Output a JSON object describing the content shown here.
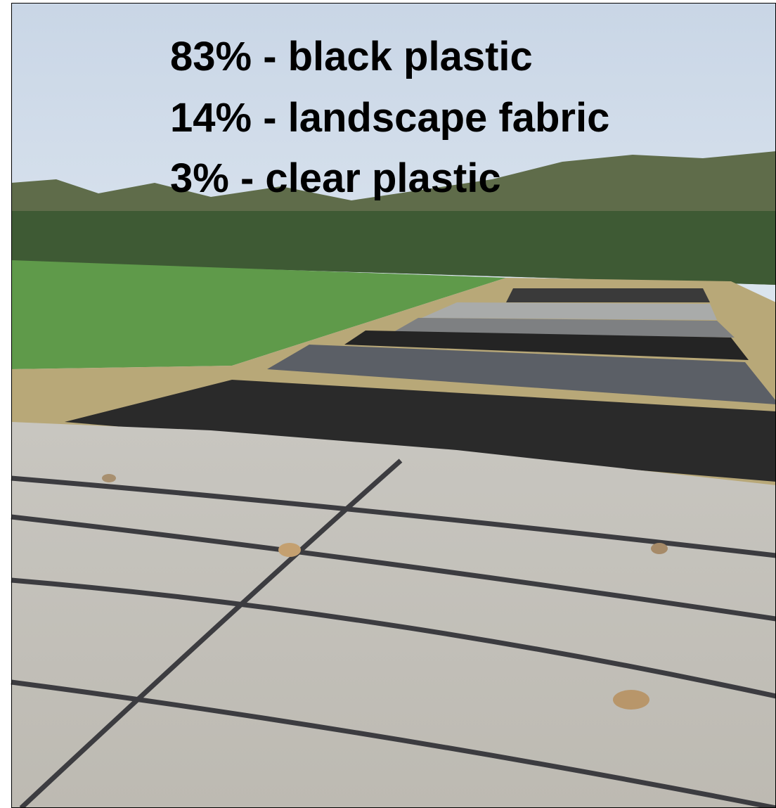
{
  "overlay": {
    "lines": [
      "83% - black plastic",
      "14% - landscape fabric",
      "3% - clear plastic"
    ]
  }
}
